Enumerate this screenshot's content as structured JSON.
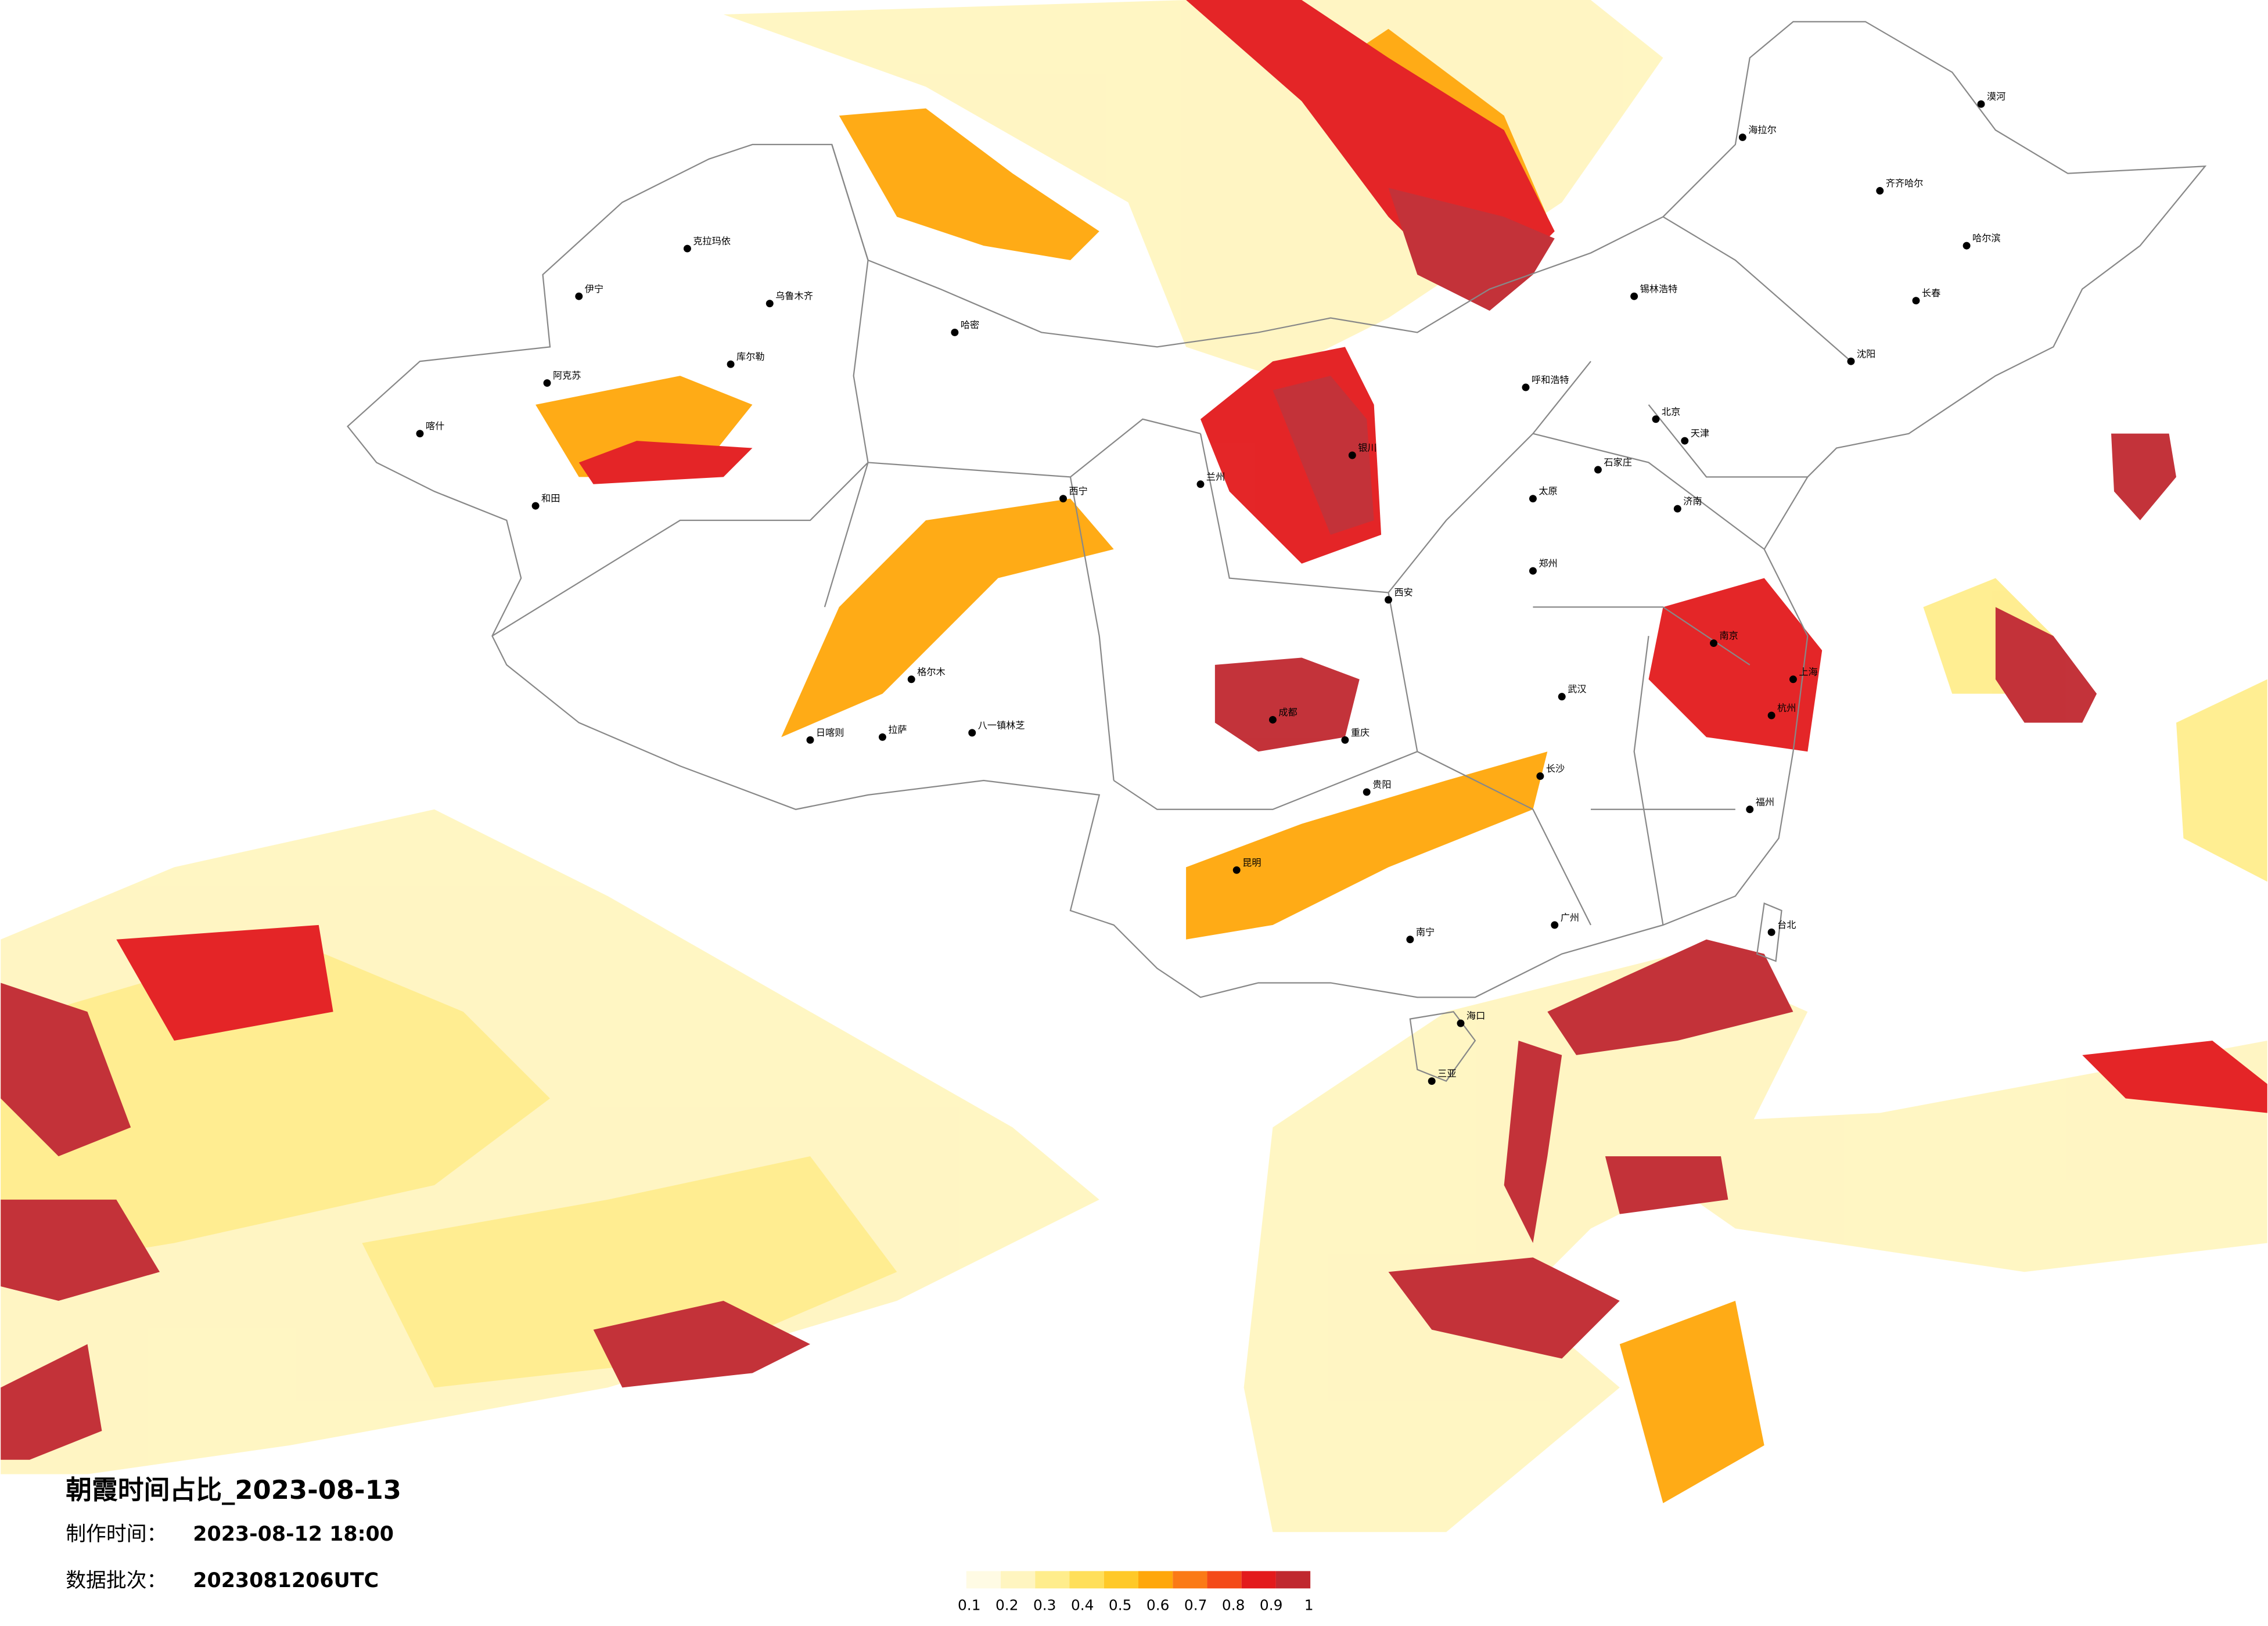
{
  "title": "朝霞时间占比_2023-08-13",
  "made_time": {
    "label": "制作时间：",
    "value": "2023-08-12 18:00"
  },
  "batch": {
    "label": "数据批次：",
    "value": "2023081206UTC"
  },
  "legend": {
    "ticks": [
      0.1,
      0.2,
      0.3,
      0.4,
      0.5,
      0.6,
      0.7,
      0.8,
      0.9,
      1
    ],
    "colors": [
      "#fffbe4",
      "#fff5c0",
      "#ffed8c",
      "#ffdf5a",
      "#ffc928",
      "#ffa70a",
      "#fb7a16",
      "#f44a18",
      "#e31a1c",
      "#c0282f"
    ]
  },
  "cities": [
    "克拉玛依",
    "乌鲁木齐",
    "伊宁",
    "库尔勒",
    "阿克苏",
    "喀什",
    "和田",
    "哈密",
    "格尔木",
    "西宁",
    "日喀则",
    "拉萨",
    "八一镇林芝",
    "银川",
    "兰州",
    "成都",
    "重庆",
    "贵阳",
    "昆明",
    "南宁",
    "海口",
    "三亚",
    "广州",
    "台北",
    "福州",
    "杭州",
    "上海",
    "南京",
    "武汉",
    "长沙",
    "西安",
    "郑州",
    "太原",
    "济南",
    "石家庄",
    "北京",
    "天津",
    "呼和浩特",
    "锡林浩特",
    "沈阳",
    "长春",
    "哈尔滨",
    "齐齐哈尔",
    "海拉尔",
    "漠河"
  ]
}
